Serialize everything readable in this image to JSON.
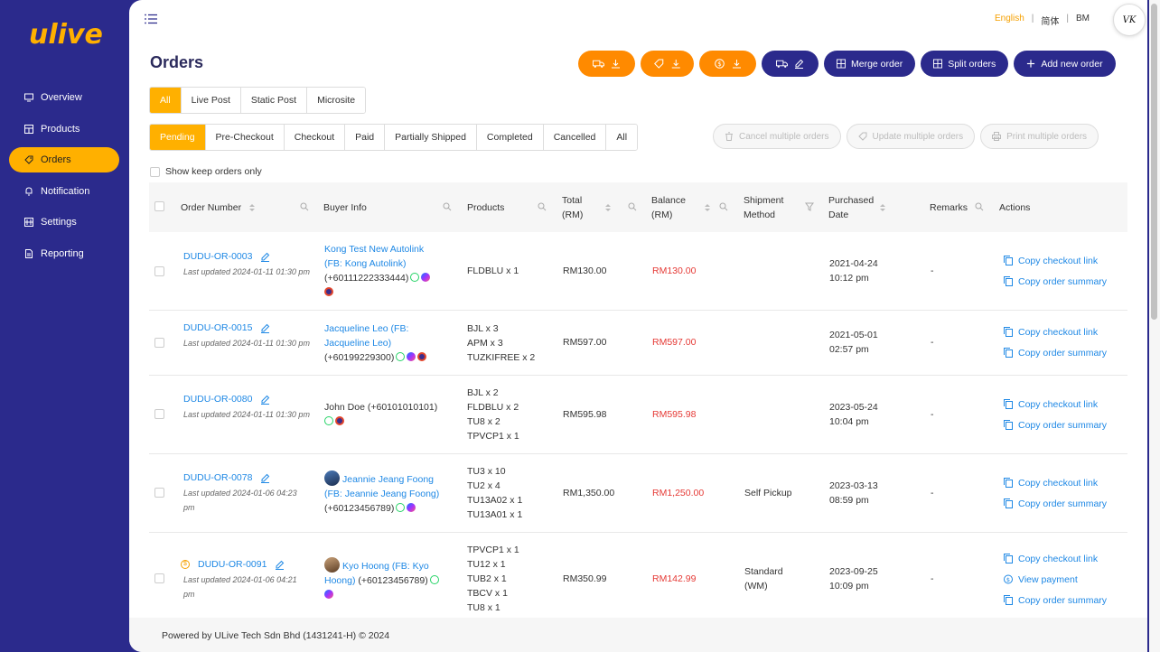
{
  "brand": {
    "logo_text": "ulive"
  },
  "sidebar": {
    "items": [
      {
        "label": "Overview",
        "icon": "monitor-icon"
      },
      {
        "label": "Products",
        "icon": "box-icon"
      },
      {
        "label": "Orders",
        "icon": "tag-icon",
        "active": true
      },
      {
        "label": "Notification",
        "icon": "bell-icon"
      },
      {
        "label": "Settings",
        "icon": "settings-icon"
      },
      {
        "label": "Reporting",
        "icon": "report-icon"
      }
    ]
  },
  "header": {
    "languages": [
      "English",
      "简体",
      "BM"
    ],
    "selected_language": "English",
    "avatar_initials": "VK"
  },
  "page": {
    "title": "Orders"
  },
  "toolbar": {
    "merge_label": "Merge order",
    "split_label": "Split orders",
    "add_label": "Add new order"
  },
  "source_tabs": [
    "All",
    "Live Post",
    "Static Post",
    "Microsite"
  ],
  "status_tabs": [
    "Pending",
    "Pre-Checkout",
    "Checkout",
    "Paid",
    "Partially Shipped",
    "Completed",
    "Cancelled",
    "All"
  ],
  "bulk_actions": {
    "cancel": "Cancel multiple orders",
    "update": "Update multiple orders",
    "print": "Print multiple orders"
  },
  "filters": {
    "keep_only_label": "Show keep orders only"
  },
  "table": {
    "headers": {
      "order_number": "Order Number",
      "buyer_info": "Buyer Info",
      "products": "Products",
      "total_1": "Total",
      "total_2": "(RM)",
      "balance_1": "Balance",
      "balance_2": "(RM)",
      "shipment_1": "Shipment",
      "shipment_2": "Method",
      "purchased_1": "Purchased",
      "purchased_2": "Date",
      "remarks": "Remarks",
      "actions": "Actions"
    },
    "rows": [
      {
        "order_no": "DUDU-OR-0003",
        "updated": "Last updated 2024-01-11 01:30 pm",
        "buyer_l1": "Kong Test New Autolink",
        "buyer_l2": "(FB: Kong Autolink)",
        "buyer_phone": "(+60111222333444)",
        "products": [
          "FLDBLU x 1"
        ],
        "total": "RM130.00",
        "balance": "RM130.00",
        "shipment": "",
        "date": "2021-04-24",
        "time": "10:12 pm",
        "remarks": "-",
        "actions": [
          "Copy checkout link",
          "Copy order summary"
        ]
      },
      {
        "order_no": "DUDU-OR-0015",
        "updated": "Last updated 2024-01-11 01:30 pm",
        "buyer_l1": "Jacqueline Leo (FB:",
        "buyer_l2": "Jacqueline Leo)",
        "buyer_phone": "(+60199229300)",
        "products": [
          "BJL x 3",
          "APM x 3",
          "TUZKIFREE x 2"
        ],
        "total": "RM597.00",
        "balance": "RM597.00",
        "shipment": "",
        "date": "2021-05-01",
        "time": "02:57 pm",
        "remarks": "-",
        "actions": [
          "Copy checkout link",
          "Copy order summary"
        ]
      },
      {
        "order_no": "DUDU-OR-0080",
        "updated": "Last updated 2024-01-11 01:30 pm",
        "buyer_plain": "John Doe (+60101010101)",
        "products": [
          "BJL x 2",
          "FLDBLU x 2",
          "TU8 x 2",
          "TPVCP1 x 1"
        ],
        "total": "RM595.98",
        "balance": "RM595.98",
        "shipment": "",
        "date": "2023-05-24",
        "time": "10:04 pm",
        "remarks": "-",
        "actions": [
          "Copy checkout link",
          "Copy order summary"
        ]
      },
      {
        "order_no": "DUDU-OR-0078",
        "updated": "Last updated 2024-01-06 04:23 pm",
        "buyer_l1": "Jeannie Jeang Foong",
        "buyer_l2": "(FB: Jeannie Jeang Foong)",
        "buyer_phone": "(+60123456789)",
        "products": [
          "TU3 x 10",
          "TU2 x 4",
          "TU13A02 x 1",
          "TU13A01 x 1"
        ],
        "total": "RM1,350.00",
        "balance": "RM1,250.00",
        "shipment": "Self Pickup",
        "date": "2023-03-13",
        "time": "08:59 pm",
        "remarks": "-",
        "actions": [
          "Copy checkout link",
          "Copy order summary"
        ]
      },
      {
        "order_no": "DUDU-OR-0091",
        "updated": "Last updated 2024-01-06 04:21 pm",
        "buyer_l1": "Kyo Hoong (FB: Kyo",
        "buyer_l2": "Hoong)",
        "buyer_phone": "(+60123456789)",
        "products": [
          "TPVCP1 x 1",
          "TU12 x 1",
          "TUB2 x 1",
          "TBCV x 1",
          "TU8 x 1"
        ],
        "total": "RM350.99",
        "balance": "RM142.99",
        "shipment_1": "Standard",
        "shipment_2": "(WM)",
        "date": "2023-09-25",
        "time": "10:09 pm",
        "remarks": "-",
        "actions": [
          "Copy checkout link",
          "View payment",
          "Copy order summary"
        ]
      }
    ]
  },
  "footer": {
    "text": "Powered by ULive Tech Sdn Bhd (1431241-H) © 2024"
  },
  "colors": {
    "sidebar": "#2b2a8c",
    "accent": "#ffb000",
    "orange": "#ff8a00",
    "link": "#1e88e5",
    "balance": "#e53935"
  }
}
